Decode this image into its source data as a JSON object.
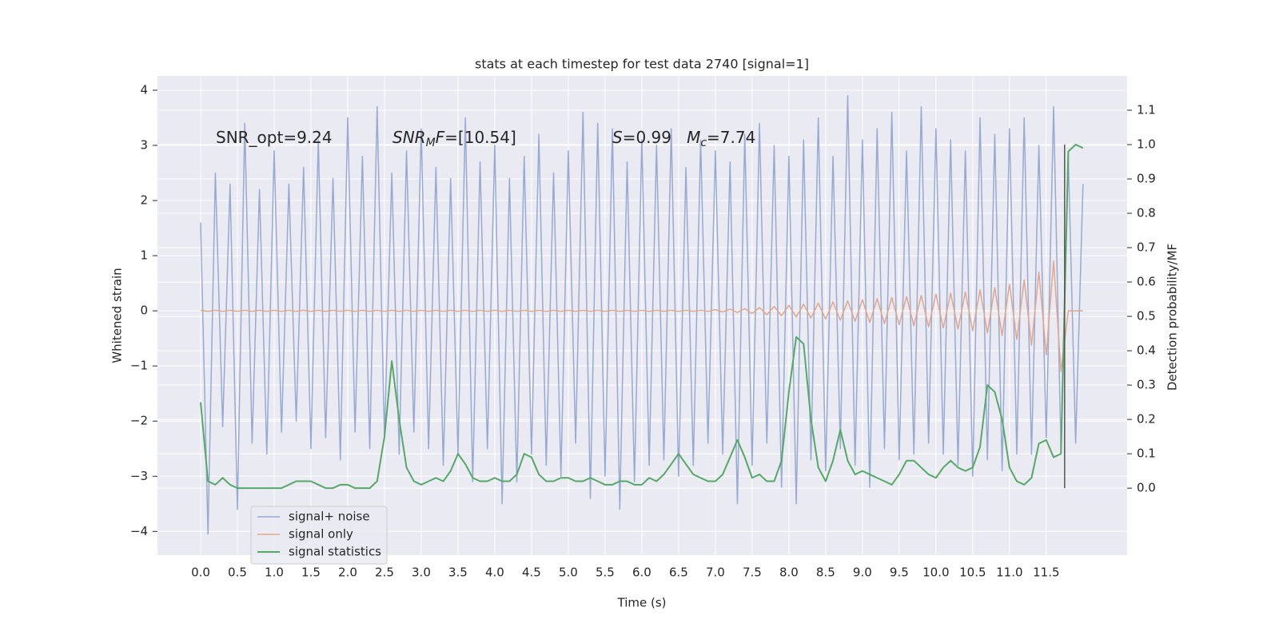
{
  "chart_data": {
    "type": "line",
    "title": "stats at each timestep for test data 2740 [signal=1]",
    "x_label": "Time (s)",
    "y_label": "Whitened strain",
    "y2_label": "Detection probability/MF",
    "xlim": [
      -0.587,
      12.6
    ],
    "ylim": [
      -4.43,
      4.26
    ],
    "y2lim": [
      -0.195,
      1.2
    ],
    "xticks": [
      {
        "value": 0,
        "label": "0.0"
      },
      0.5,
      {
        "value": 1,
        "label": "1.0"
      },
      1.5,
      {
        "value": 2,
        "label": "2.0"
      },
      2.5,
      {
        "value": 3,
        "label": "3.0"
      },
      3.5,
      {
        "value": 4,
        "label": "4.0"
      },
      4.5,
      {
        "value": 5,
        "label": "5.0"
      },
      5.5,
      {
        "value": 6,
        "label": "6.0"
      },
      6.5,
      {
        "value": 7,
        "label": "7.0"
      },
      7.5,
      {
        "value": 8,
        "label": "8.0"
      },
      8.5,
      {
        "value": 9,
        "label": "9.0"
      },
      9.5,
      {
        "value": 10,
        "label": "10.0"
      },
      10.5,
      {
        "value": 11,
        "label": "11.0"
      },
      11.5
    ],
    "yticks": [
      {
        "value": -4,
        "label": "−4"
      },
      {
        "value": -3,
        "label": "−3"
      },
      {
        "value": -2,
        "label": "−2"
      },
      {
        "value": -1,
        "label": "−1"
      },
      0,
      1,
      2,
      3,
      4
    ],
    "y2ticks": [
      {
        "value": 0,
        "label": "0.0"
      },
      0.1,
      0.2,
      0.3,
      0.4,
      0.5,
      0.6,
      0.7,
      0.8,
      0.9,
      {
        "value": 1,
        "label": "1.0"
      },
      1.1
    ],
    "grid": true,
    "legend": "lower left",
    "x": [
      0,
      0.1,
      0.2,
      0.3,
      0.4,
      0.5,
      0.6,
      0.7,
      0.8,
      0.9,
      1,
      1.1,
      1.2,
      1.3,
      1.4,
      1.5,
      1.6,
      1.7,
      1.8,
      1.9,
      2,
      2.1,
      2.2,
      2.3,
      2.4,
      2.5,
      2.6,
      2.7,
      2.8,
      2.9,
      3,
      3.1,
      3.2,
      3.3,
      3.4,
      3.5,
      3.6,
      3.7,
      3.8,
      3.9,
      4,
      4.1,
      4.2,
      4.3,
      4.4,
      4.5,
      4.6,
      4.7,
      4.8,
      4.9,
      5,
      5.1,
      5.2,
      5.3,
      5.4,
      5.5,
      5.6,
      5.7,
      5.8,
      5.9,
      6,
      6.1,
      6.2,
      6.3,
      6.4,
      6.5,
      6.6,
      6.7,
      6.8,
      6.9,
      7,
      7.1,
      7.2,
      7.3,
      7.4,
      7.5,
      7.6,
      7.7,
      7.8,
      7.9,
      8,
      8.1,
      8.2,
      8.3,
      8.4,
      8.5,
      8.6,
      8.7,
      8.8,
      8.9,
      9,
      9.1,
      9.2,
      9.3,
      9.4,
      9.5,
      9.6,
      9.7,
      9.8,
      9.9,
      10,
      10.1,
      10.2,
      10.3,
      10.4,
      10.5,
      10.6,
      10.7,
      10.8,
      10.9,
      11,
      11.1,
      11.2,
      11.3,
      11.4,
      11.5,
      11.6,
      11.7,
      11.8,
      11.9,
      12
    ],
    "series": [
      {
        "name": "signal+ noise",
        "color": "#96aad3",
        "width": 1.5,
        "values": [
          1.6,
          -4.05,
          2.5,
          -2.1,
          2.3,
          -3.6,
          3.4,
          -2.4,
          2.2,
          -2.6,
          2.9,
          -2.2,
          2.3,
          -2.0,
          2.6,
          -2.5,
          3.1,
          -2.3,
          2.4,
          -2.7,
          3.5,
          -2.2,
          2.8,
          -2.5,
          3.7,
          -2.3,
          2.5,
          -2.6,
          2.9,
          -2.2,
          3.3,
          -2.5,
          2.6,
          -2.8,
          2.4,
          -2.6,
          3.5,
          -3.1,
          2.7,
          -2.5,
          3.0,
          -3.5,
          2.4,
          -3.1,
          2.8,
          -2.6,
          3.2,
          -2.8,
          2.5,
          -3.0,
          2.9,
          -2.4,
          3.6,
          -3.4,
          3.4,
          -3.0,
          3.3,
          -3.6,
          2.7,
          -3.1,
          3.1,
          -2.8,
          3.0,
          -2.7,
          3.3,
          -3.0,
          2.6,
          -2.8,
          3.1,
          -2.4,
          2.9,
          -2.6,
          2.7,
          -3.5,
          3.2,
          -2.8,
          3.4,
          -2.4,
          3.0,
          -3.2,
          2.8,
          -3.5,
          3.1,
          -2.7,
          3.5,
          -2.9,
          2.8,
          -2.5,
          3.9,
          -2.8,
          3.1,
          -3.2,
          3.3,
          -2.5,
          3.6,
          -2.7,
          2.9,
          -2.6,
          3.7,
          -2.4,
          3.3,
          -2.6,
          3.1,
          -2.8,
          2.9,
          -3.0,
          3.5,
          -2.7,
          3.2,
          -2.9,
          3.3,
          -2.6,
          3.5,
          -2.6,
          3.0,
          -2.3,
          3.7,
          -2.5,
          2.8,
          -2.4,
          2.3
        ]
      },
      {
        "name": "signal only",
        "color": "#e3a68a",
        "width": 1.5,
        "values": [
          0.01,
          -0.01,
          0.01,
          -0.01,
          0.01,
          -0.01,
          0.01,
          -0.01,
          0.01,
          -0.01,
          0.01,
          -0.01,
          0.01,
          -0.01,
          0.01,
          -0.01,
          0.01,
          -0.01,
          0.01,
          -0.01,
          0.01,
          -0.01,
          0.01,
          -0.01,
          0.01,
          -0.01,
          0.01,
          -0.01,
          0.01,
          -0.01,
          0.01,
          -0.01,
          0.01,
          -0.01,
          0.01,
          -0.01,
          0.01,
          -0.01,
          0.01,
          -0.01,
          0.01,
          -0.01,
          0.01,
          -0.01,
          0.01,
          -0.01,
          0.01,
          -0.01,
          0.01,
          -0.01,
          0.01,
          -0.01,
          0.01,
          -0.01,
          0.01,
          -0.01,
          0.01,
          -0.01,
          0.01,
          -0.01,
          0.01,
          -0.01,
          0.01,
          -0.01,
          0.01,
          -0.01,
          0.01,
          -0.01,
          0.01,
          -0.01,
          0.02,
          -0.02,
          0.03,
          -0.03,
          0.04,
          -0.05,
          0.06,
          -0.07,
          0.08,
          -0.09,
          0.1,
          -0.11,
          0.12,
          -0.13,
          0.14,
          -0.15,
          0.16,
          -0.17,
          0.18,
          -0.19,
          0.2,
          -0.21,
          0.22,
          -0.23,
          0.24,
          -0.25,
          0.26,
          -0.27,
          0.28,
          -0.29,
          0.3,
          -0.31,
          0.32,
          -0.33,
          0.34,
          -0.36,
          0.38,
          -0.4,
          0.42,
          -0.45,
          0.48,
          -0.52,
          0.56,
          -0.62,
          0.7,
          -0.8,
          0.9,
          -1.1,
          0,
          0,
          0
        ]
      },
      {
        "name": "signal statistics",
        "color": "#55a868",
        "width": 2,
        "axis": "y2",
        "values": [
          0.25,
          0.02,
          0.01,
          0.03,
          0.01,
          0,
          0,
          0,
          0,
          0,
          0,
          0,
          0.01,
          0.02,
          0.02,
          0.02,
          0.01,
          0,
          0,
          0.01,
          0.01,
          0,
          0,
          0,
          0.02,
          0.15,
          0.37,
          0.2,
          0.06,
          0.02,
          0.01,
          0.02,
          0.03,
          0.02,
          0.05,
          0.1,
          0.07,
          0.03,
          0.02,
          0.02,
          0.03,
          0.02,
          0.02,
          0.04,
          0.1,
          0.09,
          0.04,
          0.02,
          0.02,
          0.03,
          0.03,
          0.02,
          0.02,
          0.03,
          0.02,
          0.01,
          0.01,
          0.02,
          0.02,
          0.01,
          0.01,
          0.03,
          0.02,
          0.04,
          0.07,
          0.1,
          0.07,
          0.04,
          0.03,
          0.02,
          0.02,
          0.04,
          0.09,
          0.14,
          0.09,
          0.03,
          0.04,
          0.02,
          0.02,
          0.08,
          0.28,
          0.44,
          0.42,
          0.2,
          0.06,
          0.02,
          0.08,
          0.17,
          0.08,
          0.04,
          0.05,
          0.04,
          0.03,
          0.02,
          0.01,
          0.04,
          0.08,
          0.08,
          0.06,
          0.04,
          0.03,
          0.06,
          0.08,
          0.06,
          0.05,
          0.06,
          0.12,
          0.3,
          0.28,
          0.2,
          0.06,
          0.02,
          0.01,
          0.03,
          0.13,
          0.14,
          0.09,
          0.1,
          0.98,
          1.0,
          0.99
        ]
      }
    ],
    "vline": {
      "x": 11.75,
      "y2": [
        0,
        1
      ],
      "color": "#555555"
    },
    "annotations": [
      {
        "parts": [
          {
            "text": "SNR_opt=9.24",
            "style": "normal"
          }
        ]
      },
      {
        "parts": [
          {
            "text": "SNR",
            "style": "italic"
          },
          {
            "text": "M",
            "style": "sub"
          },
          {
            "text": "F",
            "style": "italic"
          },
          {
            "text": "=[10.54]",
            "style": "normal"
          }
        ]
      },
      {
        "parts": [
          {
            "text": "S",
            "style": "italic"
          },
          {
            "text": "=0.99   ",
            "style": "normal"
          },
          {
            "text": "M",
            "style": "italic"
          },
          {
            "text": "c",
            "style": "sub"
          },
          {
            "text": "=7.74",
            "style": "normal"
          }
        ]
      }
    ]
  }
}
